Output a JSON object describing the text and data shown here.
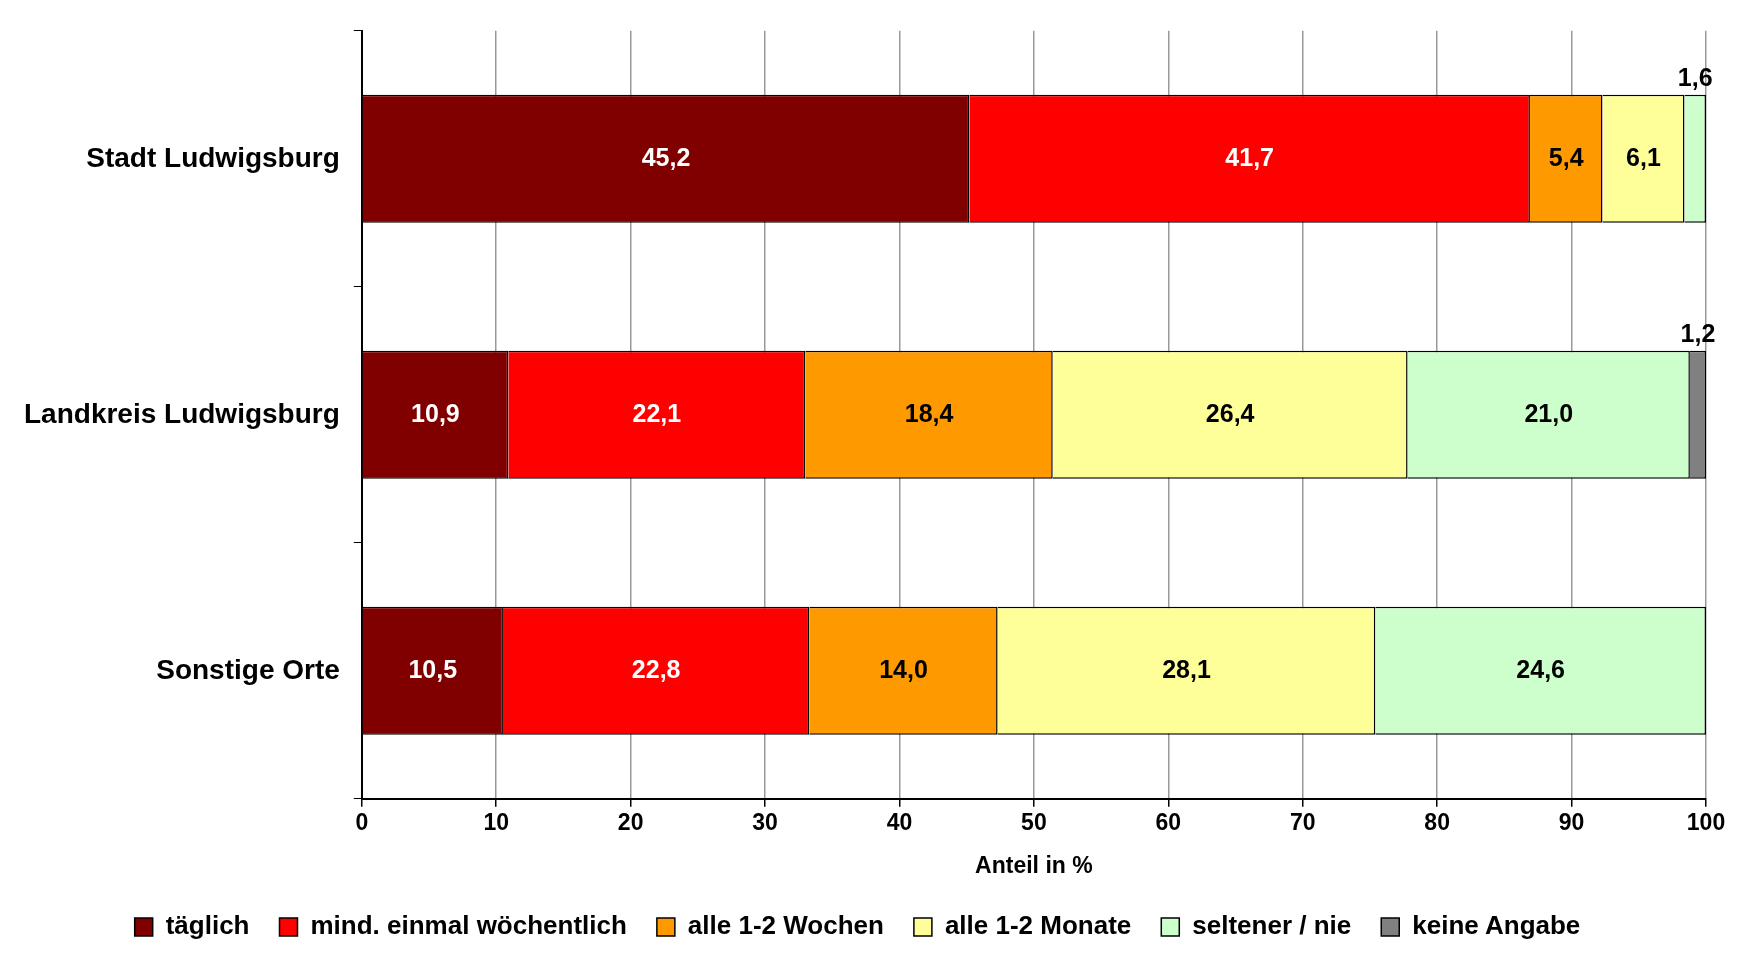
{
  "chart_data": {
    "type": "bar",
    "orientation": "horizontal",
    "stacked": true,
    "xlabel": "Anteil in %",
    "categories": [
      "Stadt Ludwigsburg",
      "Landkreis Ludwigsburg",
      "Sonstige Orte"
    ],
    "series": [
      {
        "name": "täglich",
        "color": "#800000",
        "values": [
          45.2,
          10.9,
          10.5
        ],
        "value_labels": [
          "45,2",
          "10,9",
          "10,5"
        ]
      },
      {
        "name": "mind. einmal wöchentlich",
        "color": "#ff0000",
        "values": [
          41.7,
          22.1,
          22.8
        ],
        "value_labels": [
          "41,7",
          "22,1",
          "22,8"
        ]
      },
      {
        "name": "alle 1-2 Wochen",
        "color": "#ff9900",
        "values": [
          5.4,
          18.4,
          14.0
        ],
        "value_labels": [
          "5,4",
          "18,4",
          "14,0"
        ]
      },
      {
        "name": "alle 1-2 Monate",
        "color": "#ffff99",
        "values": [
          6.1,
          26.4,
          28.1
        ],
        "value_labels": [
          "6,1",
          "26,4",
          "28,1"
        ]
      },
      {
        "name": "seltener / nie",
        "color": "#ccffcc",
        "values": [
          1.6,
          21.0,
          24.6
        ],
        "value_labels": [
          "1,6",
          "21,0",
          "24,6"
        ]
      },
      {
        "name": "keine Angabe",
        "color": "#808080",
        "values": [
          null,
          1.2,
          null
        ],
        "value_labels": [
          null,
          "1,2",
          null
        ]
      }
    ],
    "xlim": [
      0,
      100
    ],
    "xticks": [
      0,
      10,
      20,
      30,
      40,
      50,
      60,
      70,
      80,
      90,
      100
    ],
    "grid": "x",
    "legend": "bottom"
  }
}
